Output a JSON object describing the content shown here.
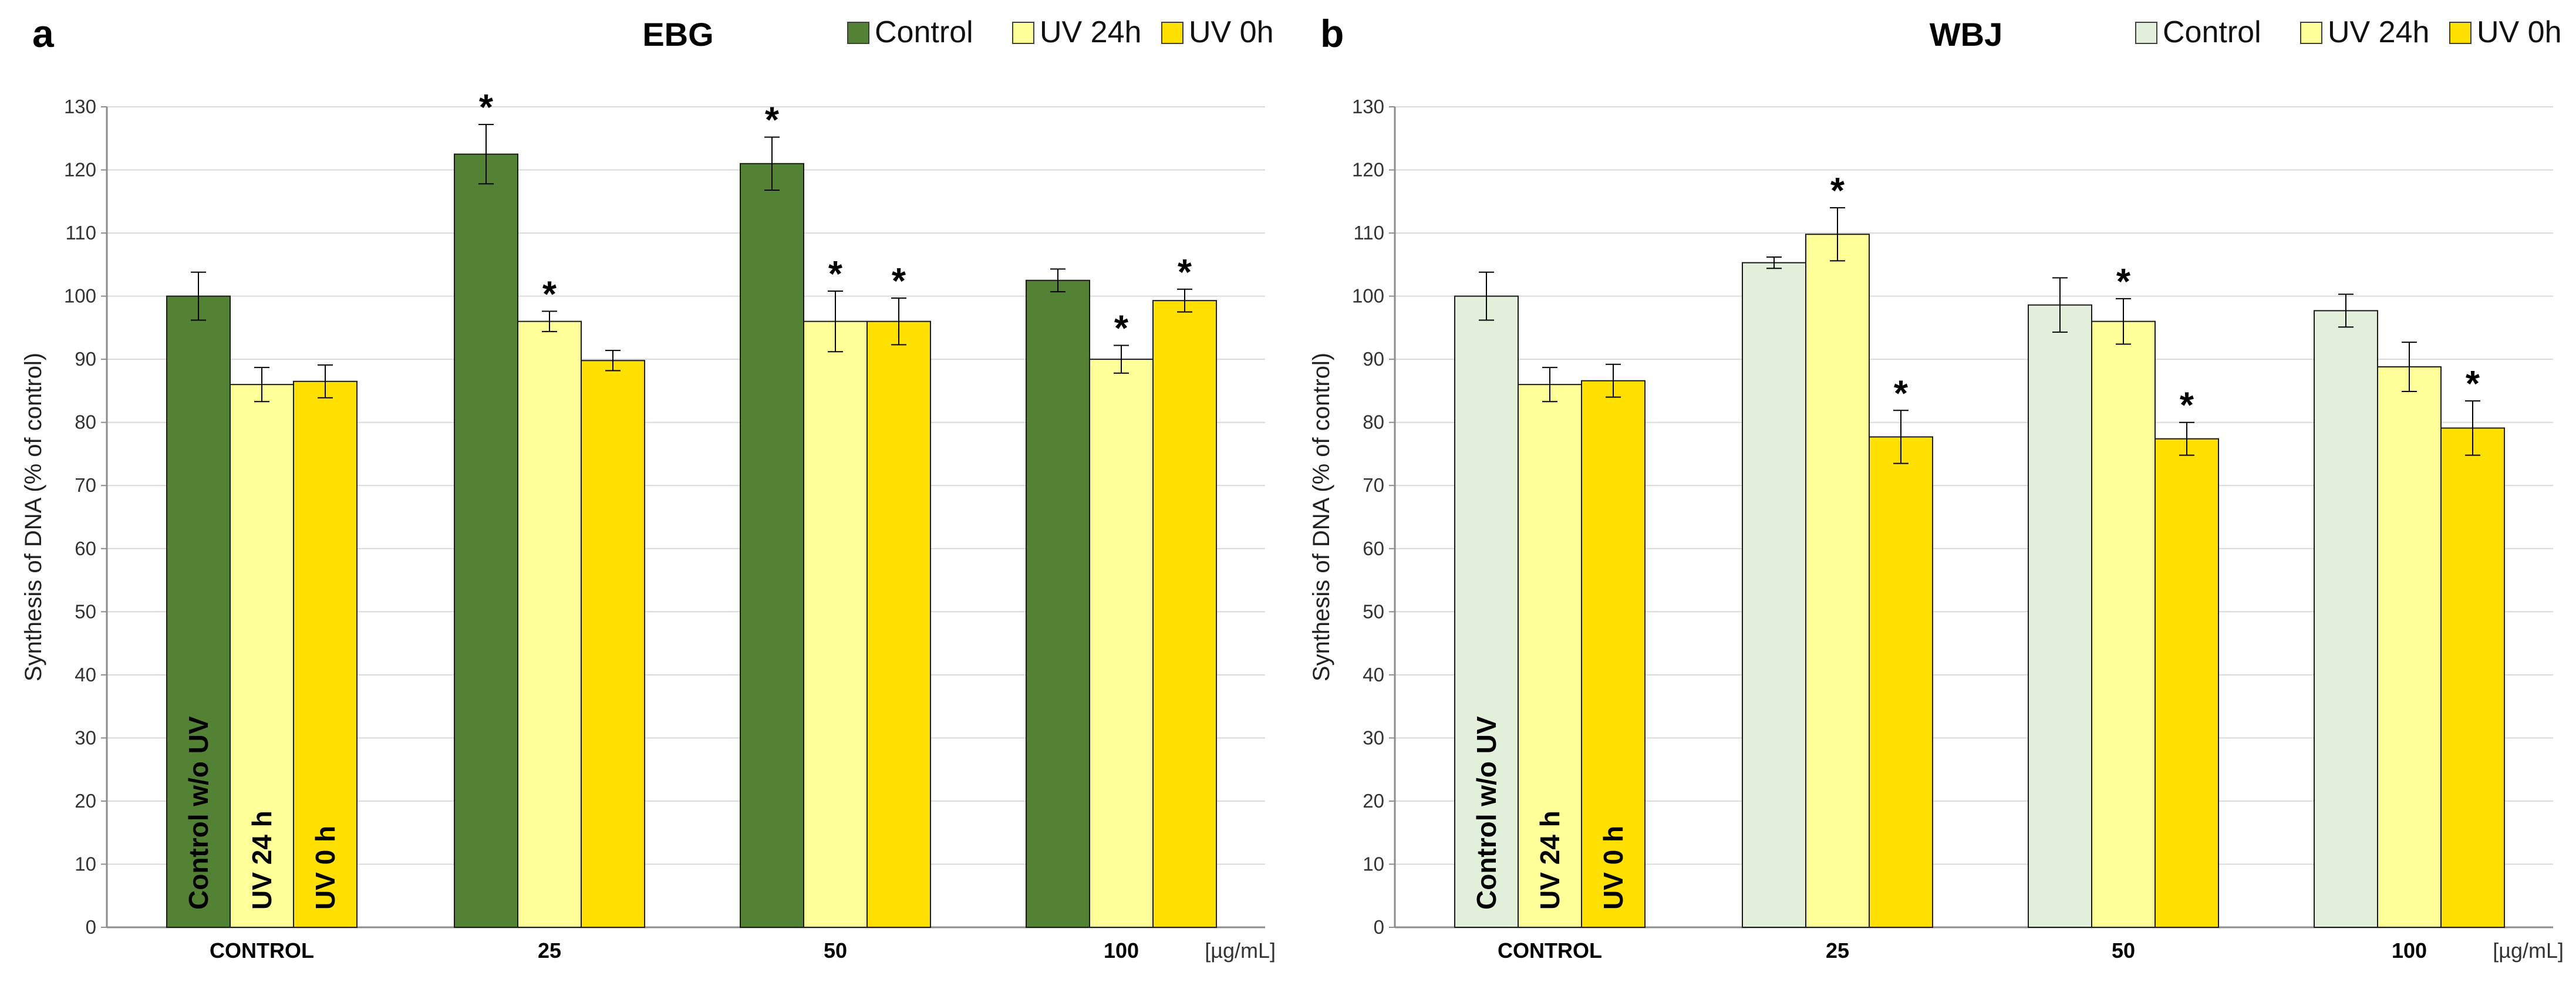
{
  "chart_data": [
    {
      "type": "bar",
      "panel_letter": "a",
      "title": "EBG",
      "ylabel": "Synthesis of DNA (% of control)",
      "xlabel": "",
      "unit_label": "[µg/mL]",
      "ylim": [
        0,
        130
      ],
      "ytick_step": 10,
      "grid": true,
      "legend_position": "top-right",
      "categories": [
        "CONTROL",
        "25",
        "50",
        "100"
      ],
      "series": [
        {
          "name": "Control",
          "color": "#548235",
          "values": [
            100,
            122.5,
            121,
            102.5
          ],
          "errors": [
            3.8,
            4.7,
            4.2,
            1.8
          ],
          "significant": [
            false,
            true,
            true,
            false
          ]
        },
        {
          "name": "UV 24h",
          "color": "#FFFF99",
          "values": [
            86,
            96,
            96,
            90
          ],
          "errors": [
            2.7,
            1.6,
            4.8,
            2.2
          ],
          "significant": [
            false,
            true,
            true,
            true
          ]
        },
        {
          "name": "UV 0h",
          "color": "#FFE000",
          "values": [
            86.5,
            89.8,
            96,
            99.3
          ],
          "errors": [
            2.6,
            1.6,
            3.7,
            1.8
          ],
          "significant": [
            false,
            false,
            true,
            true
          ]
        }
      ],
      "bar_labels": [
        "Control w/o UV",
        "UV 24 h",
        "UV 0 h"
      ],
      "significance_marker": "*"
    },
    {
      "type": "bar",
      "panel_letter": "b",
      "title": "WBJ",
      "ylabel": "Synthesis of DNA (% of control)",
      "xlabel": "",
      "unit_label": "[µg/mL]",
      "ylim": [
        0,
        130
      ],
      "ytick_step": 10,
      "grid": true,
      "legend_position": "top-right",
      "categories": [
        "CONTROL",
        "25",
        "50",
        "100"
      ],
      "series": [
        {
          "name": "Control",
          "color": "#E2EFDA",
          "values": [
            100,
            105.3,
            98.6,
            97.7
          ],
          "errors": [
            3.8,
            0.9,
            4.3,
            2.6
          ],
          "significant": [
            false,
            false,
            false,
            false
          ]
        },
        {
          "name": "UV 24h",
          "color": "#FFFF99",
          "values": [
            86,
            109.8,
            96,
            88.8
          ],
          "errors": [
            2.7,
            4.2,
            3.6,
            3.9
          ],
          "significant": [
            false,
            true,
            true,
            false
          ]
        },
        {
          "name": "UV 0h",
          "color": "#FFE000",
          "values": [
            86.6,
            77.7,
            77.4,
            79.1
          ],
          "errors": [
            2.6,
            4.2,
            2.6,
            4.3
          ],
          "significant": [
            false,
            true,
            true,
            true
          ]
        }
      ],
      "bar_labels": [
        "Control w/o UV",
        "UV 24 h",
        "UV 0 h"
      ],
      "significance_marker": "*"
    }
  ]
}
